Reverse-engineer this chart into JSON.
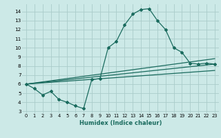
{
  "xlabel": "Humidex (Indice chaleur)",
  "x_ticks": [
    0,
    1,
    2,
    3,
    4,
    5,
    6,
    7,
    8,
    9,
    10,
    11,
    12,
    13,
    14,
    15,
    16,
    17,
    18,
    19,
    20,
    21,
    22,
    23
  ],
  "ylim": [
    2.8,
    14.8
  ],
  "xlim": [
    -0.5,
    23.5
  ],
  "yticks": [
    3,
    4,
    5,
    6,
    7,
    8,
    9,
    10,
    11,
    12,
    13,
    14
  ],
  "background_color": "#cce9e7",
  "grid_color": "#aaccca",
  "line_color": "#1a6b5e",
  "series1_x": [
    0,
    1,
    2,
    3,
    4,
    5,
    6,
    7,
    8,
    9,
    10,
    11,
    12,
    13,
    14,
    15,
    16,
    17,
    18,
    19,
    20,
    21,
    22,
    23
  ],
  "series1_y": [
    6.0,
    5.5,
    4.8,
    5.2,
    4.3,
    4.0,
    3.6,
    3.3,
    6.5,
    6.6,
    10.0,
    10.7,
    12.5,
    13.7,
    14.2,
    14.3,
    13.0,
    12.0,
    10.0,
    9.5,
    8.3,
    8.2,
    8.3,
    8.2
  ],
  "series2_x": [
    0,
    23
  ],
  "series2_y": [
    6.0,
    8.2
  ],
  "series3_x": [
    0,
    23
  ],
  "series3_y": [
    6.0,
    7.5
  ],
  "series4_x": [
    0,
    23
  ],
  "series4_y": [
    6.0,
    8.8
  ]
}
